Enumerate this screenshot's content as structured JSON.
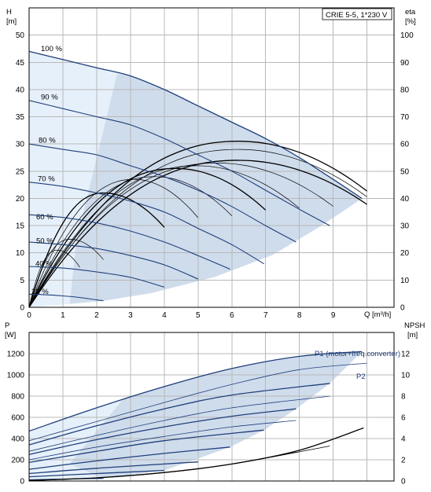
{
  "title_box": "CRIE 5-5, 1*230 V",
  "colors": {
    "head_curve": "#1f3f7a",
    "eta_curve": "#000000",
    "fill_light": "#cfdcec",
    "fill_lighter": "#e6f0fa"
  },
  "chart_data": [
    {
      "type": "line",
      "name": "top",
      "xlabel": "Q [m³/h]",
      "ylabel_left_line1": "H",
      "ylabel_left_line2": "[m]",
      "ylabel_right_line1": "eta",
      "ylabel_right_line2": "[%]",
      "xlim": [
        0,
        10.8
      ],
      "ylim": [
        0,
        55
      ],
      "y2lim": [
        0,
        110
      ],
      "x_ticks": [
        "0",
        "1",
        "2",
        "3",
        "4",
        "5",
        "6",
        "7",
        "8",
        "9"
      ],
      "y_ticks": [
        "0",
        "5",
        "10",
        "15",
        "20",
        "25",
        "30",
        "35",
        "40",
        "45",
        "50"
      ],
      "y2_ticks": [
        "0",
        "10",
        "20",
        "30",
        "40",
        "50",
        "60",
        "70",
        "80",
        "90",
        "100"
      ],
      "speed_labels": [
        "100 %",
        "90 %",
        "80 %",
        "70 %",
        "60 %",
        "50 %",
        "40 %",
        "22 %"
      ],
      "head_curves": [
        {
          "speed": 1.0,
          "label": "100 %",
          "x": [
            0,
            1,
            2,
            3,
            4,
            5,
            6,
            7,
            8,
            9,
            9.85
          ],
          "y": [
            47,
            45.5,
            44,
            42.5,
            40,
            37,
            34,
            31,
            27.5,
            23.5,
            20
          ]
        },
        {
          "speed": 0.9,
          "label": "90 %",
          "x": [
            0,
            1,
            2,
            3,
            4,
            5,
            6,
            7,
            8,
            8.9
          ],
          "y": [
            38,
            36.5,
            35,
            33.5,
            31,
            28,
            25,
            21.5,
            18,
            15
          ]
        },
        {
          "speed": 0.8,
          "label": "80 %",
          "x": [
            0,
            1,
            2,
            3,
            4,
            5,
            6,
            7,
            7.9
          ],
          "y": [
            30,
            29,
            28,
            26,
            24,
            21.5,
            18.5,
            15,
            12
          ]
        },
        {
          "speed": 0.7,
          "label": "70 %",
          "x": [
            0,
            1,
            2,
            3,
            4,
            5,
            6,
            6.95
          ],
          "y": [
            23,
            22.2,
            21,
            19.5,
            17.5,
            14.5,
            11.5,
            8
          ]
        },
        {
          "speed": 0.6,
          "label": "60 %",
          "x": [
            0,
            1,
            2,
            3,
            4,
            5,
            5.95
          ],
          "y": [
            17,
            16.5,
            15.5,
            14,
            12,
            9.5,
            7
          ]
        },
        {
          "speed": 0.5,
          "label": "50 %",
          "x": [
            0,
            1,
            2,
            3,
            4,
            5
          ],
          "y": [
            12,
            11.5,
            10.8,
            9.5,
            7.8,
            5.2
          ]
        },
        {
          "speed": 0.4,
          "label": "40 %",
          "x": [
            0,
            1,
            2,
            3,
            4
          ],
          "y": [
            7.5,
            7.2,
            6.5,
            5.5,
            3.7
          ]
        },
        {
          "speed": 0.22,
          "label": "22 %",
          "x": [
            0,
            0.5,
            1,
            1.5,
            2.2
          ],
          "y": [
            2.4,
            2.3,
            2.1,
            1.8,
            1.2
          ]
        }
      ],
      "eta_curves_peak_percent": [
        21,
        25,
        42,
        47,
        48,
        51,
        52,
        53,
        54,
        58,
        61
      ],
      "eta_curve_max_q": [
        1.5,
        2.2,
        4.0,
        5.0,
        6.0,
        7.0,
        8.0,
        9.0,
        10.0,
        10.0,
        10.0
      ]
    },
    {
      "type": "line",
      "name": "bottom",
      "xlim": [
        0,
        10.8
      ],
      "ylim": [
        0,
        1400
      ],
      "y2lim": [
        0,
        14
      ],
      "ylabel_left_line1": "P",
      "ylabel_left_line2": "[W]",
      "ylabel_right_line1": "NPSH",
      "ylabel_right_line2": "[m]",
      "y_ticks": [
        "0",
        "200",
        "400",
        "600",
        "800",
        "1000",
        "1200"
      ],
      "y2_ticks": [
        "0",
        "2",
        "4",
        "6",
        "8",
        "10",
        "12"
      ],
      "series_labels": [
        "P1 (motor+freq.converter)",
        "P2"
      ],
      "p1_curves": [
        {
          "x": [
            0,
            2,
            4,
            6,
            8,
            9.85
          ],
          "y": [
            470,
            690,
            890,
            1060,
            1175,
            1220
          ]
        },
        {
          "x": [
            0,
            2,
            4,
            6,
            8.9
          ],
          "y": [
            340,
            520,
            680,
            810,
            920
          ]
        },
        {
          "x": [
            0,
            2,
            4,
            6,
            7.9
          ],
          "y": [
            250,
            390,
            510,
            610,
            680
          ]
        },
        {
          "x": [
            0,
            2,
            4,
            6.95
          ],
          "y": [
            175,
            280,
            380,
            480
          ]
        },
        {
          "x": [
            0,
            2,
            4,
            5.95
          ],
          "y": [
            110,
            190,
            260,
            320
          ]
        },
        {
          "x": [
            0,
            2,
            5
          ],
          "y": [
            70,
            120,
            180
          ]
        },
        {
          "x": [
            0,
            2,
            4
          ],
          "y": [
            40,
            70,
            100
          ]
        },
        {
          "x": [
            0,
            1,
            2.2
          ],
          "y": [
            10,
            18,
            25
          ]
        }
      ],
      "p2_curves": [
        {
          "x": [
            0,
            2,
            4,
            6,
            8,
            10
          ],
          "y": [
            380,
            560,
            740,
            910,
            1050,
            1110
          ]
        },
        {
          "x": [
            0,
            2,
            4,
            6,
            8.9
          ],
          "y": [
            280,
            430,
            570,
            690,
            800
          ]
        },
        {
          "x": [
            0,
            2,
            4,
            6,
            7.9
          ],
          "y": [
            200,
            320,
            420,
            510,
            570
          ]
        }
      ],
      "npsh_curves": [
        {
          "x": [
            0,
            2,
            4,
            6,
            8,
            9.9
          ],
          "y": [
            0.05,
            0.3,
            0.8,
            1.6,
            2.9,
            5.0
          ]
        },
        {
          "x": [
            0,
            2,
            4,
            6,
            8.9
          ],
          "y": [
            0.05,
            0.3,
            0.8,
            1.6,
            3.3
          ]
        },
        {
          "x": [
            0,
            2,
            4,
            6,
            7.9
          ],
          "y": [
            0.05,
            0.3,
            0.8,
            1.6,
            2.7
          ]
        }
      ]
    }
  ]
}
